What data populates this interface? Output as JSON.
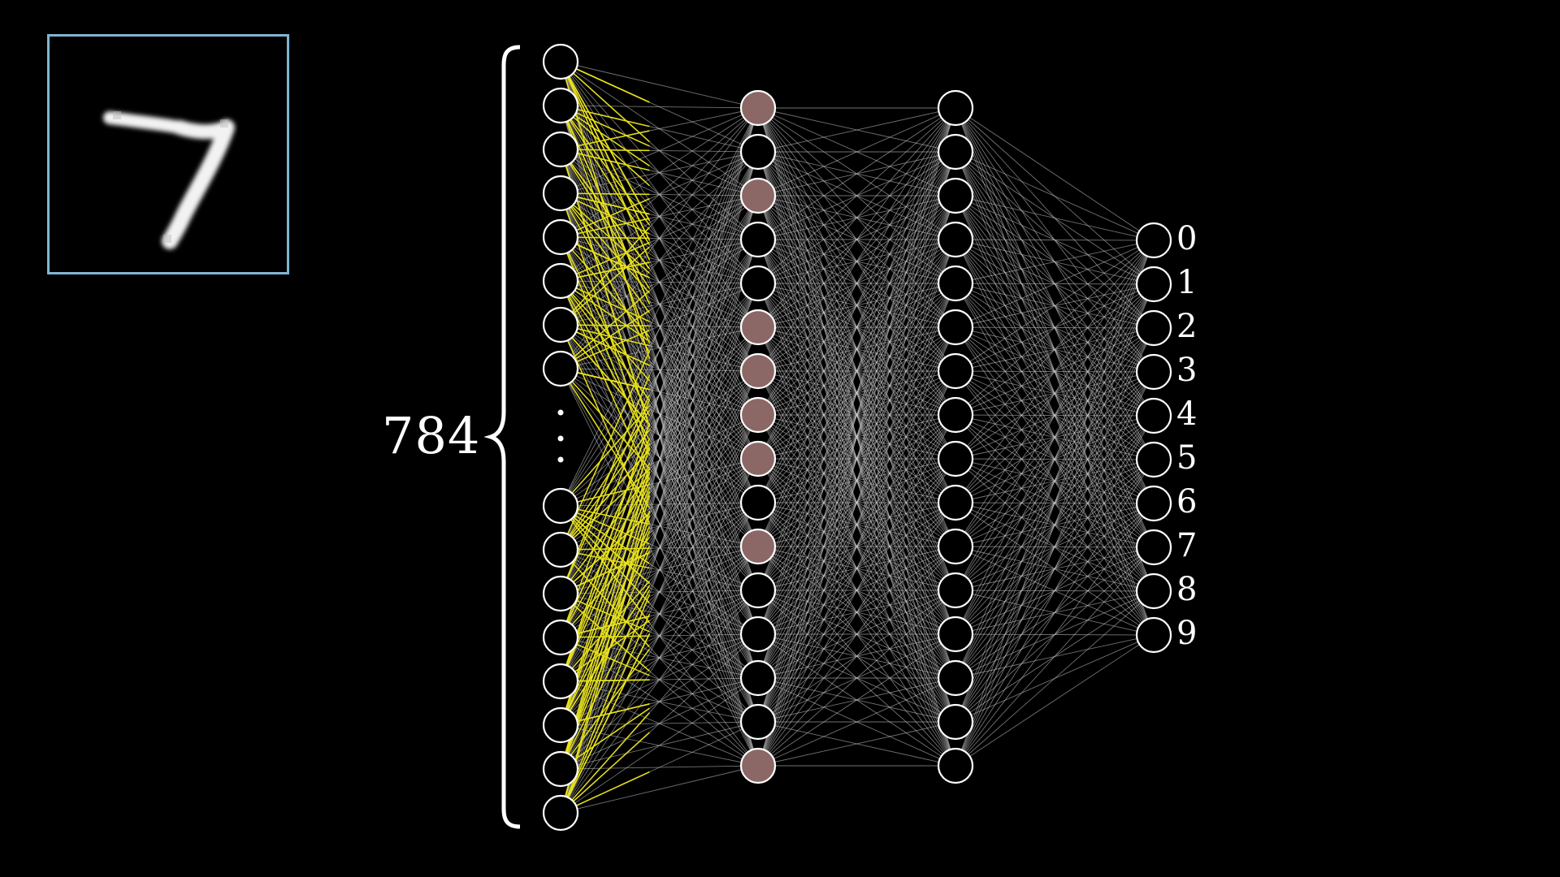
{
  "input_layer": {
    "count_label": "784",
    "ellipsis": "⋮"
  },
  "digit_image": {
    "digit_shown": "7",
    "frame_color": "#7fb6d3"
  },
  "hidden_layer_1": {
    "active_nodes": [
      0,
      2,
      5,
      6,
      7,
      8,
      10,
      15
    ],
    "active_color": "#8b6766"
  },
  "output_layer": {
    "labels": [
      "0",
      "1",
      "2",
      "3",
      "4",
      "5",
      "6",
      "7",
      "8",
      "9"
    ]
  },
  "colors": {
    "highlight_edge": "#e8e21c",
    "edge": "#cfcfcf",
    "node_stroke": "#ffffff"
  }
}
